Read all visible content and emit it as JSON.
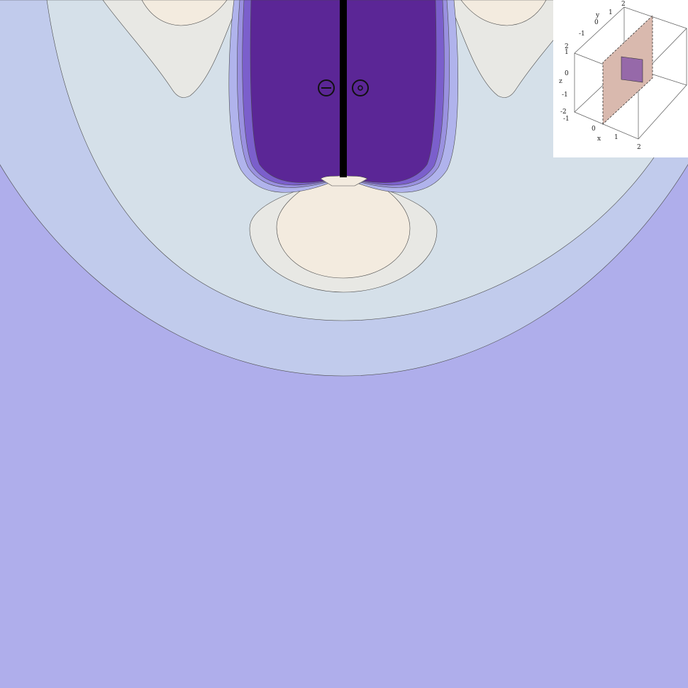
{
  "chart_data": [
    {
      "type": "contour",
      "title": "",
      "xlabel": "",
      "ylabel": "",
      "colors": {
        "background": "#afaeeb",
        "level_1": "#c1cbec",
        "level_2": "#d5e0e9",
        "level_3": "#e8e8e4",
        "level_4": "#f3ebdf",
        "inner_1": "#b0b3ec",
        "inner_2": "#9a91e0",
        "inner_3": "#7b5fcc",
        "core": "#5b2696",
        "contour_line": "#4a4a4a",
        "conductor": "#000000"
      },
      "symbols": {
        "into_page": "⊖",
        "out_of_page": "⊙"
      }
    },
    {
      "type": "3d-box",
      "axes": {
        "x": {
          "label": "x",
          "ticks": [
            "0",
            "1",
            "2"
          ]
        },
        "y": {
          "label": "y",
          "ticks": [
            "-1",
            "0",
            "1",
            "2"
          ]
        },
        "z": {
          "label": "z",
          "ticks": [
            "-2",
            "-1",
            "0",
            "1",
            "2"
          ]
        },
        "bottom_ticks": [
          "-1"
        ]
      },
      "colors": {
        "plane": "#d9b9ae",
        "square": "#8a5aa8"
      }
    }
  ]
}
